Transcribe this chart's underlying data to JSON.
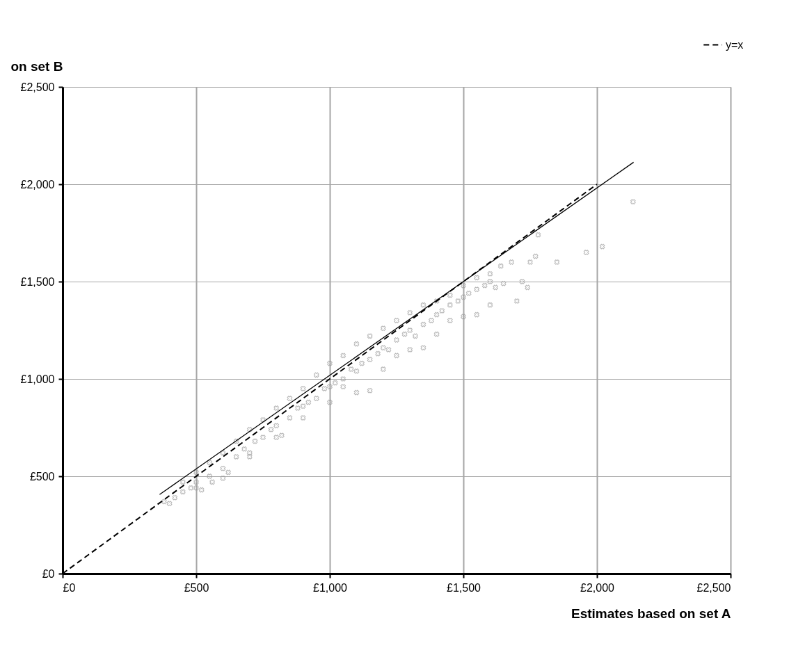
{
  "chart_data": {
    "type": "scatter",
    "xlabel": "Estimates based on set A",
    "ylabel": "on set B",
    "xlim": [
      0,
      2500
    ],
    "ylim": [
      0,
      2500
    ],
    "xticks": [
      {
        "value": 0,
        "label": "£0"
      },
      {
        "value": 500,
        "label": "£500"
      },
      {
        "value": 1000,
        "label": "£1,000"
      },
      {
        "value": 1500,
        "label": "£1,500"
      },
      {
        "value": 2000,
        "label": "£2,000"
      },
      {
        "value": 2500,
        "label": "£2,500"
      }
    ],
    "yticks": [
      {
        "value": 0,
        "label": "£0"
      },
      {
        "value": 500,
        "label": "£500"
      },
      {
        "value": 1000,
        "label": "£1,000"
      },
      {
        "value": 1500,
        "label": "£1,500"
      },
      {
        "value": 2000,
        "label": "£2,000"
      },
      {
        "value": 2500,
        "label": "£2,500"
      }
    ],
    "grid": true,
    "legend": "top right",
    "series": [
      {
        "color": "#999999",
        "marker": "cross",
        "x": [
          380,
          400,
          420,
          450,
          480,
          500,
          520,
          550,
          560,
          600,
          620,
          650,
          680,
          700,
          720,
          750,
          780,
          800,
          820,
          850,
          880,
          900,
          920,
          950,
          980,
          1000,
          1020,
          1050,
          1080,
          1100,
          1120,
          1150,
          1180,
          1200,
          1220,
          1250,
          1280,
          1300,
          1320,
          1350,
          1380,
          1400,
          1420,
          1450,
          1480,
          1500,
          1520,
          1550,
          1580,
          1600,
          1620,
          1650,
          450,
          500,
          550,
          600,
          650,
          700,
          750,
          800,
          850,
          900,
          950,
          1000,
          1050,
          1100,
          1150,
          1200,
          1250,
          1300,
          1350,
          1400,
          1450,
          1500,
          1550,
          1600,
          500,
          600,
          700,
          800,
          900,
          1000,
          1050,
          1100,
          1150,
          1200,
          1250,
          1300,
          1350,
          1400,
          1450,
          1500,
          1550,
          1600,
          1700,
          1740,
          1750,
          1770,
          1780,
          1850,
          1960,
          2020,
          2135,
          1640,
          1680,
          1720
        ],
        "values": [
          370,
          360,
          390,
          420,
          440,
          470,
          430,
          500,
          470,
          540,
          520,
          600,
          640,
          620,
          680,
          700,
          740,
          760,
          710,
          800,
          850,
          860,
          880,
          900,
          950,
          960,
          980,
          1000,
          1050,
          1040,
          1080,
          1100,
          1130,
          1160,
          1150,
          1200,
          1230,
          1250,
          1220,
          1280,
          1300,
          1330,
          1350,
          1380,
          1400,
          1420,
          1440,
          1460,
          1480,
          1500,
          1470,
          1490,
          470,
          520,
          570,
          620,
          680,
          740,
          790,
          850,
          900,
          950,
          1020,
          1080,
          1120,
          1180,
          1220,
          1260,
          1300,
          1340,
          1380,
          1400,
          1430,
          1480,
          1520,
          1540,
          440,
          490,
          600,
          700,
          800,
          880,
          960,
          930,
          940,
          1050,
          1120,
          1150,
          1160,
          1230,
          1300,
          1320,
          1330,
          1380,
          1400,
          1470,
          1600,
          1630,
          1740,
          1600,
          1650,
          1680,
          1910,
          1580,
          1600,
          1500
        ]
      },
      {
        "type": "line",
        "color": "#000000",
        "line_style": "solid",
        "x": [
          363,
          2137
        ],
        "values": [
          406,
          2113
        ]
      },
      {
        "type": "line",
        "name": "y=x",
        "color": "#000000",
        "line_style": "dashed",
        "x": [
          0,
          2000
        ],
        "values": [
          0,
          2000
        ]
      }
    ]
  }
}
